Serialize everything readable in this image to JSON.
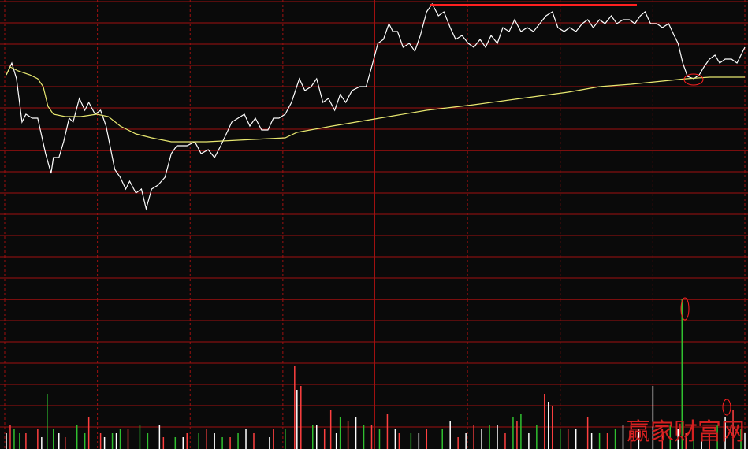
{
  "watermark": "赢家财富网",
  "chart_data": [
    {
      "type": "line",
      "xlim": [
        0,
        945
      ],
      "xticks": [
        3,
        121,
        239,
        357,
        474,
        592,
        710,
        828,
        945
      ],
      "ylim": [
        0,
        380
      ],
      "yticks": [
        0,
        27,
        54,
        81,
        108,
        135,
        162,
        189,
        216,
        243,
        270,
        297,
        324,
        351,
        378
      ],
      "grid": true,
      "series": [
        {
          "color": "#ffffff",
          "x": [
            5,
            12,
            18,
            25,
            30,
            38,
            45,
            55,
            62,
            65,
            72,
            78,
            85,
            90,
            98,
            105,
            110,
            118,
            125,
            132,
            138,
            143,
            150,
            157,
            162,
            170,
            177,
            183,
            190,
            198,
            207,
            215,
            222,
            235,
            245,
            253,
            262,
            270,
            278,
            285,
            292,
            300,
            308,
            315,
            322,
            330,
            338,
            345,
            352,
            360,
            368,
            378,
            385,
            393,
            400,
            408,
            415,
            423,
            430,
            437,
            445,
            455,
            463,
            470,
            478,
            485,
            492,
            497,
            503,
            510,
            518,
            525,
            532,
            540,
            547,
            555,
            562,
            570,
            577,
            585,
            593,
            600,
            608,
            615,
            622,
            630,
            637,
            645,
            652,
            660,
            668,
            676,
            684,
            692,
            700,
            707,
            715,
            722,
            730,
            738,
            745,
            752,
            760,
            767,
            775,
            782,
            790,
            798,
            805,
            812,
            818,
            825,
            833,
            840,
            848,
            855,
            860,
            866,
            872,
            880,
            887,
            893,
            900,
            907,
            913,
            920,
            928,
            935,
            945
          ],
          "values": [
            285,
            300,
            280,
            225,
            235,
            230,
            230,
            185,
            160,
            180,
            180,
            200,
            230,
            225,
            255,
            240,
            250,
            235,
            240,
            220,
            190,
            165,
            155,
            140,
            150,
            135,
            140,
            115,
            140,
            145,
            155,
            185,
            195,
            195,
            200,
            185,
            190,
            180,
            195,
            210,
            225,
            230,
            235,
            220,
            230,
            215,
            215,
            230,
            230,
            235,
            250,
            280,
            265,
            270,
            280,
            250,
            255,
            240,
            260,
            250,
            265,
            270,
            270,
            295,
            325,
            330,
            350,
            340,
            340,
            320,
            325,
            315,
            335,
            365,
            375,
            360,
            365,
            345,
            330,
            335,
            325,
            320,
            330,
            320,
            335,
            325,
            345,
            340,
            355,
            340,
            345,
            340,
            350,
            360,
            365,
            345,
            340,
            345,
            340,
            350,
            355,
            345,
            355,
            350,
            360,
            350,
            355,
            355,
            350,
            360,
            365,
            350,
            350,
            345,
            350,
            335,
            325,
            300,
            283,
            280,
            285,
            295,
            305,
            310,
            300,
            305,
            305,
            300,
            320
          ]
        },
        {
          "color": "#e8e870",
          "x": [
            5,
            10,
            20,
            35,
            45,
            52,
            58,
            65,
            80,
            100,
            120,
            135,
            150,
            170,
            190,
            215,
            260,
            300,
            360,
            375,
            420,
            480,
            540,
            600,
            660,
            720,
            760,
            800,
            840,
            870,
            900,
            945
          ],
          "values": [
            285,
            295,
            290,
            285,
            280,
            270,
            245,
            235,
            232,
            232,
            235,
            232,
            220,
            210,
            205,
            200,
            200,
            202,
            205,
            212,
            220,
            230,
            240,
            247,
            255,
            263,
            270,
            273,
            277,
            280,
            282,
            282
          ]
        }
      ]
    },
    {
      "type": "bar",
      "ylim": [
        0,
        190
      ],
      "yticks": [
        28,
        55,
        82,
        109,
        136,
        163,
        190
      ],
      "grid": true,
      "series": [
        {
          "color": "#ff4040",
          "x": [
            10,
            30,
            45,
            80,
            110,
            125,
            160,
            205,
            235,
            260,
            290,
            320,
            345,
            372,
            380,
            410,
            418,
            440,
            470,
            490,
            505,
            540,
            580,
            600,
            640,
            655,
            690,
            700,
            720,
            745,
            770,
            800,
            840,
            870,
            900,
            930
          ],
          "values": [
            30,
            20,
            25,
            15,
            40,
            20,
            25,
            15,
            20,
            25,
            15,
            20,
            25,
            105,
            80,
            25,
            50,
            35,
            30,
            45,
            20,
            25,
            15,
            30,
            20,
            35,
            70,
            55,
            25,
            40,
            20,
            30,
            25,
            20,
            20,
            50
          ]
        },
        {
          "color": "#30c030",
          "x": [
            15,
            22,
            57,
            65,
            95,
            105,
            140,
            150,
            175,
            185,
            220,
            250,
            280,
            300,
            360,
            395,
            430,
            460,
            480,
            520,
            560,
            620,
            650,
            660,
            680,
            710,
            760,
            780,
            850,
            865,
            880,
            910,
            940
          ],
          "values": [
            25,
            20,
            70,
            25,
            30,
            20,
            20,
            25,
            30,
            20,
            15,
            20,
            15,
            20,
            25,
            30,
            40,
            30,
            25,
            20,
            25,
            30,
            40,
            45,
            30,
            25,
            20,
            25,
            30,
            190,
            20,
            30,
            25
          ]
        },
        {
          "color": "#ffffff",
          "x": [
            5,
            50,
            72,
            130,
            145,
            200,
            230,
            270,
            310,
            340,
            375,
            400,
            425,
            450,
            500,
            530,
            570,
            590,
            610,
            630,
            670,
            695,
            730,
            750,
            790,
            810,
            828,
            860,
            890,
            920,
            945
          ],
          "values": [
            20,
            15,
            20,
            15,
            20,
            30,
            15,
            20,
            25,
            15,
            75,
            30,
            20,
            40,
            25,
            20,
            35,
            20,
            25,
            30,
            20,
            60,
            25,
            20,
            30,
            25,
            80,
            25,
            20,
            40,
            20
          ]
        }
      ]
    }
  ]
}
